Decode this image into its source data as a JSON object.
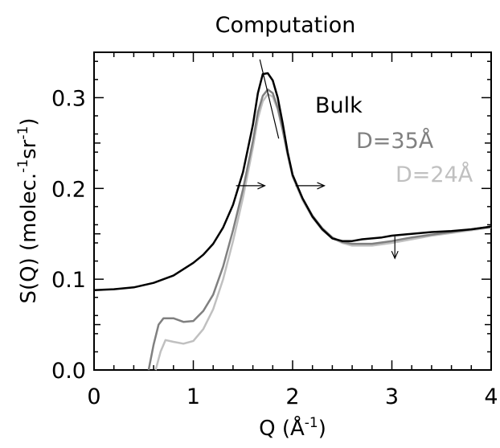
{
  "chart_data": {
    "type": "line",
    "title": "Computation",
    "xlabel": {
      "main": "Q (Å",
      "sup": "-1",
      "close": ")"
    },
    "ylabel": {
      "p1": "S(Q) (molec.",
      "s1": "-1",
      "p2": "sr",
      "s2": "-1",
      "p3": ")"
    },
    "xlim": [
      0,
      4
    ],
    "ylim": [
      0,
      0.35
    ],
    "xticks": [
      {
        "value": 0,
        "label": "0"
      },
      {
        "value": 1,
        "label": "1"
      },
      {
        "value": 2,
        "label": "2"
      },
      {
        "value": 3,
        "label": "3"
      },
      {
        "value": 4,
        "label": "4"
      }
    ],
    "yticks": [
      {
        "value": 0.0,
        "label": "0.0"
      },
      {
        "value": 0.1,
        "label": "0.1"
      },
      {
        "value": 0.2,
        "label": "0.2"
      },
      {
        "value": 0.3,
        "label": "0.3"
      }
    ],
    "grid": false,
    "series": [
      {
        "name": "Bulk",
        "color": "#000000",
        "points": [
          [
            0,
            0.088
          ],
          [
            0.2,
            0.089
          ],
          [
            0.4,
            0.091
          ],
          [
            0.6,
            0.096
          ],
          [
            0.8,
            0.104
          ],
          [
            1.0,
            0.118
          ],
          [
            1.1,
            0.127
          ],
          [
            1.2,
            0.139
          ],
          [
            1.3,
            0.157
          ],
          [
            1.4,
            0.182
          ],
          [
            1.5,
            0.218
          ],
          [
            1.6,
            0.27
          ],
          [
            1.65,
            0.305
          ],
          [
            1.7,
            0.326
          ],
          [
            1.75,
            0.327
          ],
          [
            1.8,
            0.319
          ],
          [
            1.85,
            0.3
          ],
          [
            1.9,
            0.272
          ],
          [
            1.95,
            0.24
          ],
          [
            2.0,
            0.215
          ],
          [
            2.1,
            0.189
          ],
          [
            2.2,
            0.169
          ],
          [
            2.3,
            0.155
          ],
          [
            2.4,
            0.145
          ],
          [
            2.5,
            0.142
          ],
          [
            2.6,
            0.142
          ],
          [
            2.7,
            0.144
          ],
          [
            2.8,
            0.145
          ],
          [
            2.9,
            0.146
          ],
          [
            3.0,
            0.148
          ],
          [
            3.2,
            0.15
          ],
          [
            3.4,
            0.152
          ],
          [
            3.6,
            0.153
          ],
          [
            3.8,
            0.155
          ],
          [
            4.0,
            0.158
          ]
        ]
      },
      {
        "name": "D=35Å",
        "color": "#808080",
        "points": [
          [
            0.55,
            0.0
          ],
          [
            0.6,
            0.028
          ],
          [
            0.65,
            0.05
          ],
          [
            0.7,
            0.057
          ],
          [
            0.8,
            0.057
          ],
          [
            0.9,
            0.053
          ],
          [
            1.0,
            0.054
          ],
          [
            1.1,
            0.065
          ],
          [
            1.2,
            0.083
          ],
          [
            1.3,
            0.114
          ],
          [
            1.4,
            0.154
          ],
          [
            1.5,
            0.199
          ],
          [
            1.6,
            0.252
          ],
          [
            1.65,
            0.284
          ],
          [
            1.7,
            0.302
          ],
          [
            1.75,
            0.309
          ],
          [
            1.8,
            0.305
          ],
          [
            1.85,
            0.289
          ],
          [
            1.9,
            0.265
          ],
          [
            1.95,
            0.238
          ],
          [
            2.0,
            0.214
          ],
          [
            2.1,
            0.189
          ],
          [
            2.2,
            0.17
          ],
          [
            2.3,
            0.156
          ],
          [
            2.4,
            0.146
          ],
          [
            2.5,
            0.141
          ],
          [
            2.6,
            0.139
          ],
          [
            2.8,
            0.139
          ],
          [
            3.0,
            0.142
          ],
          [
            3.2,
            0.146
          ],
          [
            3.4,
            0.149
          ],
          [
            3.6,
            0.152
          ],
          [
            3.8,
            0.155
          ],
          [
            4.0,
            0.158
          ]
        ]
      },
      {
        "name": "D=24Å",
        "color": "#c0c0c0",
        "points": [
          [
            0.62,
            0.0
          ],
          [
            0.67,
            0.02
          ],
          [
            0.72,
            0.033
          ],
          [
            0.8,
            0.031
          ],
          [
            0.9,
            0.029
          ],
          [
            1.0,
            0.032
          ],
          [
            1.1,
            0.045
          ],
          [
            1.2,
            0.067
          ],
          [
            1.3,
            0.1
          ],
          [
            1.4,
            0.142
          ],
          [
            1.5,
            0.19
          ],
          [
            1.6,
            0.245
          ],
          [
            1.65,
            0.277
          ],
          [
            1.7,
            0.296
          ],
          [
            1.75,
            0.304
          ],
          [
            1.8,
            0.301
          ],
          [
            1.85,
            0.287
          ],
          [
            1.9,
            0.264
          ],
          [
            1.95,
            0.237
          ],
          [
            2.0,
            0.213
          ],
          [
            2.1,
            0.187
          ],
          [
            2.2,
            0.168
          ],
          [
            2.3,
            0.154
          ],
          [
            2.4,
            0.145
          ],
          [
            2.5,
            0.14
          ],
          [
            2.6,
            0.137
          ],
          [
            2.8,
            0.137
          ],
          [
            3.0,
            0.14
          ],
          [
            3.2,
            0.144
          ],
          [
            3.4,
            0.148
          ],
          [
            3.6,
            0.151
          ],
          [
            3.8,
            0.154
          ],
          [
            4.0,
            0.157
          ]
        ]
      }
    ],
    "annotations": {
      "arrows": [
        {
          "from": [
            1.43,
            0.203
          ],
          "to": [
            1.72,
            0.203
          ]
        },
        {
          "from": [
            2.03,
            0.203
          ],
          "to": [
            2.32,
            0.203
          ]
        },
        {
          "from": [
            3.03,
            0.147
          ],
          "to": [
            3.03,
            0.123
          ]
        }
      ],
      "lines": [
        {
          "from": [
            1.67,
            0.342
          ],
          "to": [
            1.86,
            0.255
          ]
        }
      ]
    },
    "legend": {
      "placement": "top-right, inline labels"
    }
  }
}
